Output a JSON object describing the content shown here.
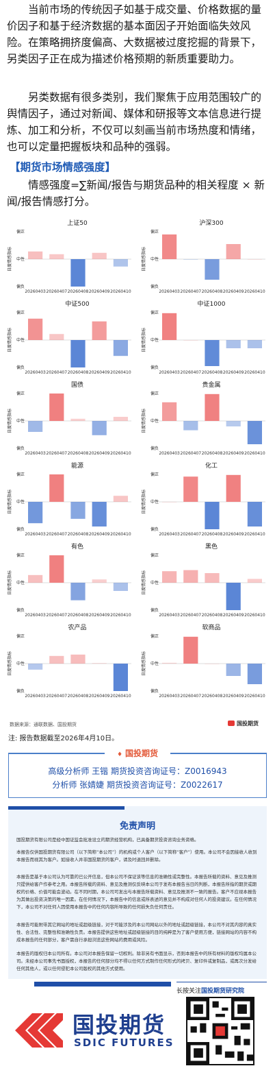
{
  "paragraphs": [
    "当前市场的传统因子如基于成交量、价格数据的量价因子和基于经济数据的基本面因子开始面临失效风险。在策略拥挤度偏高、大数据被过度挖掘的背景下，另类因子正在成为描述价格预期的新质重要助力。",
    "另类数据有很多类别，我们聚焦于应用范围较广的舆情因子，通过对新闻、媒体和研报等文本信息进行提炼、加工和分析，不仅可以刻画当前市场热度和情绪，也可以定量把握板块和品种的强弱。"
  ],
  "section_title": "【期货市场情感强度】",
  "formula": "情感强度=∑新闻/报告与期货品种的相关程度 × 新闻/报告情感打分。",
  "chart_common": {
    "ylabel": "日度情感指标",
    "yticks": [
      "偏正",
      "中性",
      "偏负"
    ],
    "dates": [
      "20260403",
      "20260407",
      "20260408",
      "20260409",
      "20260410"
    ],
    "pos_color": "#f08080",
    "neg_color": "#5b86d6"
  },
  "chart_data": [
    {
      "type": "bar",
      "title": "上证50",
      "ylim": [
        -1,
        1
      ],
      "categories": [
        "20260403",
        "20260407",
        "20260408",
        "20260409",
        "20260410"
      ],
      "values": [
        0.28,
        0.18,
        -1.0,
        0.23,
        -0.27
      ]
    },
    {
      "type": "bar",
      "title": "沪深300",
      "ylim": [
        -1,
        1
      ],
      "categories": [
        "20260403",
        "20260407",
        "20260408",
        "20260409",
        "20260410"
      ],
      "values": [
        0.9,
        -0.02,
        -0.75,
        0.55,
        0.0
      ]
    },
    {
      "type": "bar",
      "title": "中证500",
      "ylim": [
        -1,
        1
      ],
      "categories": [
        "20260403",
        "20260407",
        "20260408",
        "20260409",
        "20260410"
      ],
      "values": [
        0.78,
        0.22,
        -1.0,
        0.68,
        -0.58
      ]
    },
    {
      "type": "bar",
      "title": "中证1000",
      "ylim": [
        -1,
        1
      ],
      "categories": [
        "20260403",
        "20260407",
        "20260408",
        "20260409",
        "20260410"
      ],
      "values": [
        0.98,
        0.0,
        -0.95,
        -0.3,
        -0.3
      ]
    },
    {
      "type": "bar",
      "title": "国债",
      "ylim": [
        -1,
        1
      ],
      "categories": [
        "20260403",
        "20260407",
        "20260408",
        "20260409",
        "20260410"
      ],
      "values": [
        -0.4,
        1.0,
        0.08,
        -0.52,
        0.15
      ]
    },
    {
      "type": "bar",
      "title": "贵金属",
      "ylim": [
        -1,
        1
      ],
      "categories": [
        "20260403",
        "20260407",
        "20260408",
        "20260409",
        "20260410"
      ],
      "values": [
        0.68,
        -0.34,
        0.98,
        -0.2,
        -0.85
      ]
    },
    {
      "type": "bar",
      "title": "能源",
      "ylim": [
        -1,
        1
      ],
      "categories": [
        "20260403",
        "20260407",
        "20260408",
        "20260409",
        "20260410"
      ],
      "values": [
        -0.78,
        1.0,
        -0.62,
        -0.9,
        0.22
      ]
    },
    {
      "type": "bar",
      "title": "化工",
      "ylim": [
        -1,
        1
      ],
      "categories": [
        "20260403",
        "20260407",
        "20260408",
        "20260409",
        "20260410"
      ],
      "values": [
        0.0,
        0.92,
        -1.0,
        0.98,
        -0.9
      ]
    },
    {
      "type": "bar",
      "title": "有色",
      "ylim": [
        -1,
        1
      ],
      "categories": [
        "20260403",
        "20260407",
        "20260408",
        "20260409",
        "20260410"
      ],
      "values": [
        0.28,
        1.0,
        -0.64,
        0.12,
        -0.3
      ]
    },
    {
      "type": "bar",
      "title": "黑色",
      "ylim": [
        -1,
        1
      ],
      "categories": [
        "20260403",
        "20260407",
        "20260408",
        "20260409",
        "20260410"
      ],
      "values": [
        0.42,
        0.46,
        0.35,
        -1.0,
        0.14
      ]
    },
    {
      "type": "bar",
      "title": "农产品",
      "ylim": [
        -1,
        1
      ],
      "categories": [
        "20260403",
        "20260407",
        "20260408",
        "20260409",
        "20260410"
      ],
      "values": [
        -0.22,
        0.28,
        0.33,
        0.02,
        -1.0
      ]
    },
    {
      "type": "bar",
      "title": "软商品",
      "ylim": [
        -1,
        1
      ],
      "categories": [
        "20260403",
        "20260407",
        "20260408",
        "20260409",
        "20260410"
      ],
      "values": [
        0.03,
        0.98,
        0.0,
        -0.45,
        -0.75
      ]
    }
  ],
  "source_text": "数据来源：通联数据、国投期货",
  "source_logo": "国投期货",
  "note": "注: 报告数据截至2026年4月10日。",
  "analyst": {
    "brand": "国投期货",
    "line1": "高级分析师  王锴  期货投资咨询证号：Z0016943",
    "line2": "分析师  张婧婕 期货投资咨询证号：Z0022617"
  },
  "disclaimer": {
    "title": "免责声明",
    "p1": "国投期货有限公司是经中国证监会批准设立的期货经营机构，已具备期货投资咨询业务资格。",
    "p2": "本报告仅供国投期货有限公司（以下简称“本公司”）的机构或个人客户（以下简称“客户”）使用。本公司不会因接收人收到本报告而视其为客户。如接收人并非国投期货的客户，请及时退回并删除。",
    "p3": "本报告是基于本公司认为可靠的已公开信息，但本公司不保证该等信息的准确性或完整性。本报告所载的资料、意见及推测只提供给客户作参考之用。本报告所载的资料、意见及推测仅反映本公司于发布本报告当日的判断，本报告所指的期货或期权的价格、价值可能会波动。在不同时期，本公司可发出与本报告所载资料、意见及推测不一致的报告。客户不应视本报告为其做出投资决策的唯一因素。在任何情况下，本报告中的信息或所表述的意见并不构成对任何人的投资建议。在任何情况下，本公司不对任何人因使用本报告中的任何内容所导致的任何损失负任何责任。",
    "p4": "本报告可能附带其它网站的地址或超级链接，对于可能涉及的本公司网站以外的地址或超级链接，本公司不对其内容的真实性、合法性、完整性和准确性负责。本报告提供这些地址或超级链接的目的纯粹是为了客户使用方便，链接网站的内容不构成本报告的任何部分，客户需自行承担浏览这些网站的费用或风险。",
    "p5": "本报告的版权归本公司所有。本公司对本报告保留一切权利。除非另有书面显示，否则本报告中的所有材料的版权均属本公司。未经本公司事先书面授权，本报告的任何部分均不得以任何方式制作任何形式的拷贝、复印件或复制品，或再次分发给任何其他人，或以任何侵犯本公司版权的其他方式使用。"
  },
  "footer": {
    "follow_prefix": "长按关注",
    "follow_name": "国投期货研究院",
    "brand_cn": "国投期货",
    "brand_en": "SDIC FUTURES"
  }
}
